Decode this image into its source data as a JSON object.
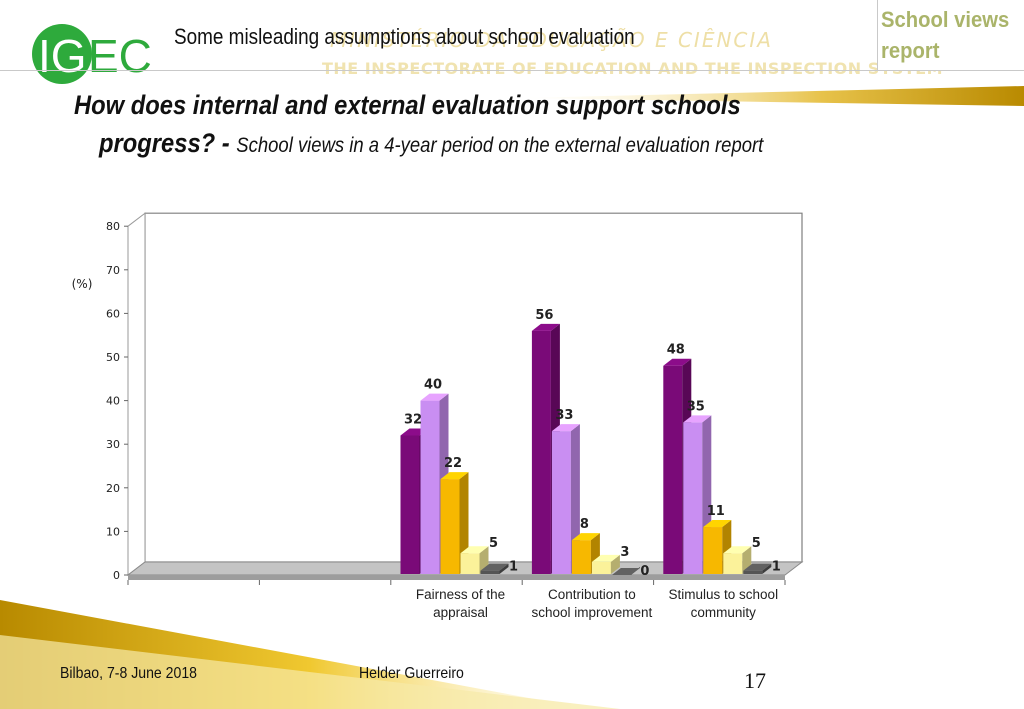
{
  "logo": {
    "text_ig": "IG",
    "text_ec": "EC",
    "colors": {
      "green": "#2eaa3c",
      "white": "#ffffff"
    }
  },
  "header": {
    "topic": "Some misleading assumptions about school evaluation",
    "watermark_line1": "MINISTÉRIO DA EDUCAÇÃO E CIÊNCIA",
    "watermark_line2": "THE INSPECTORATE OF EDUCATION AND THE INSPECTION SYSTEM",
    "corner_label": "School views report"
  },
  "title": {
    "line1": "How does internal and external evaluation support schools",
    "line2_strong": "progress?  - ",
    "line2_sub": "School views in a 4-year period on the external  evaluation report"
  },
  "chart_data": {
    "type": "bar",
    "ylabel": "(%)",
    "ylim": [
      0,
      80
    ],
    "yticks": [
      0,
      10,
      20,
      30,
      40,
      50,
      60,
      70,
      80
    ],
    "categories": [
      "",
      "",
      "Fairness of the appraisal",
      "Contribution to school improvement",
      "Stimulus to school community"
    ],
    "series": [
      {
        "values": [
          null,
          null,
          32,
          56,
          48
        ],
        "color": "#7a0a78"
      },
      {
        "values": [
          null,
          null,
          40,
          33,
          35
        ],
        "color": "#c98ef2"
      },
      {
        "values": [
          null,
          null,
          22,
          8,
          11
        ],
        "color": "#f7b800"
      },
      {
        "values": [
          null,
          null,
          5,
          3,
          5
        ],
        "color": "#fbf29a"
      },
      {
        "values": [
          null,
          null,
          1,
          0,
          1
        ],
        "color": "#555555"
      }
    ],
    "three_d": true,
    "grid": false,
    "legend": "none"
  },
  "footer": {
    "left": "Bilbao, 7-8 June 2018",
    "center": "Helder Guerreiro",
    "page_number": "17"
  },
  "colors": {
    "accent_gold": "#e8b400",
    "corner_text": "#aab46a"
  }
}
